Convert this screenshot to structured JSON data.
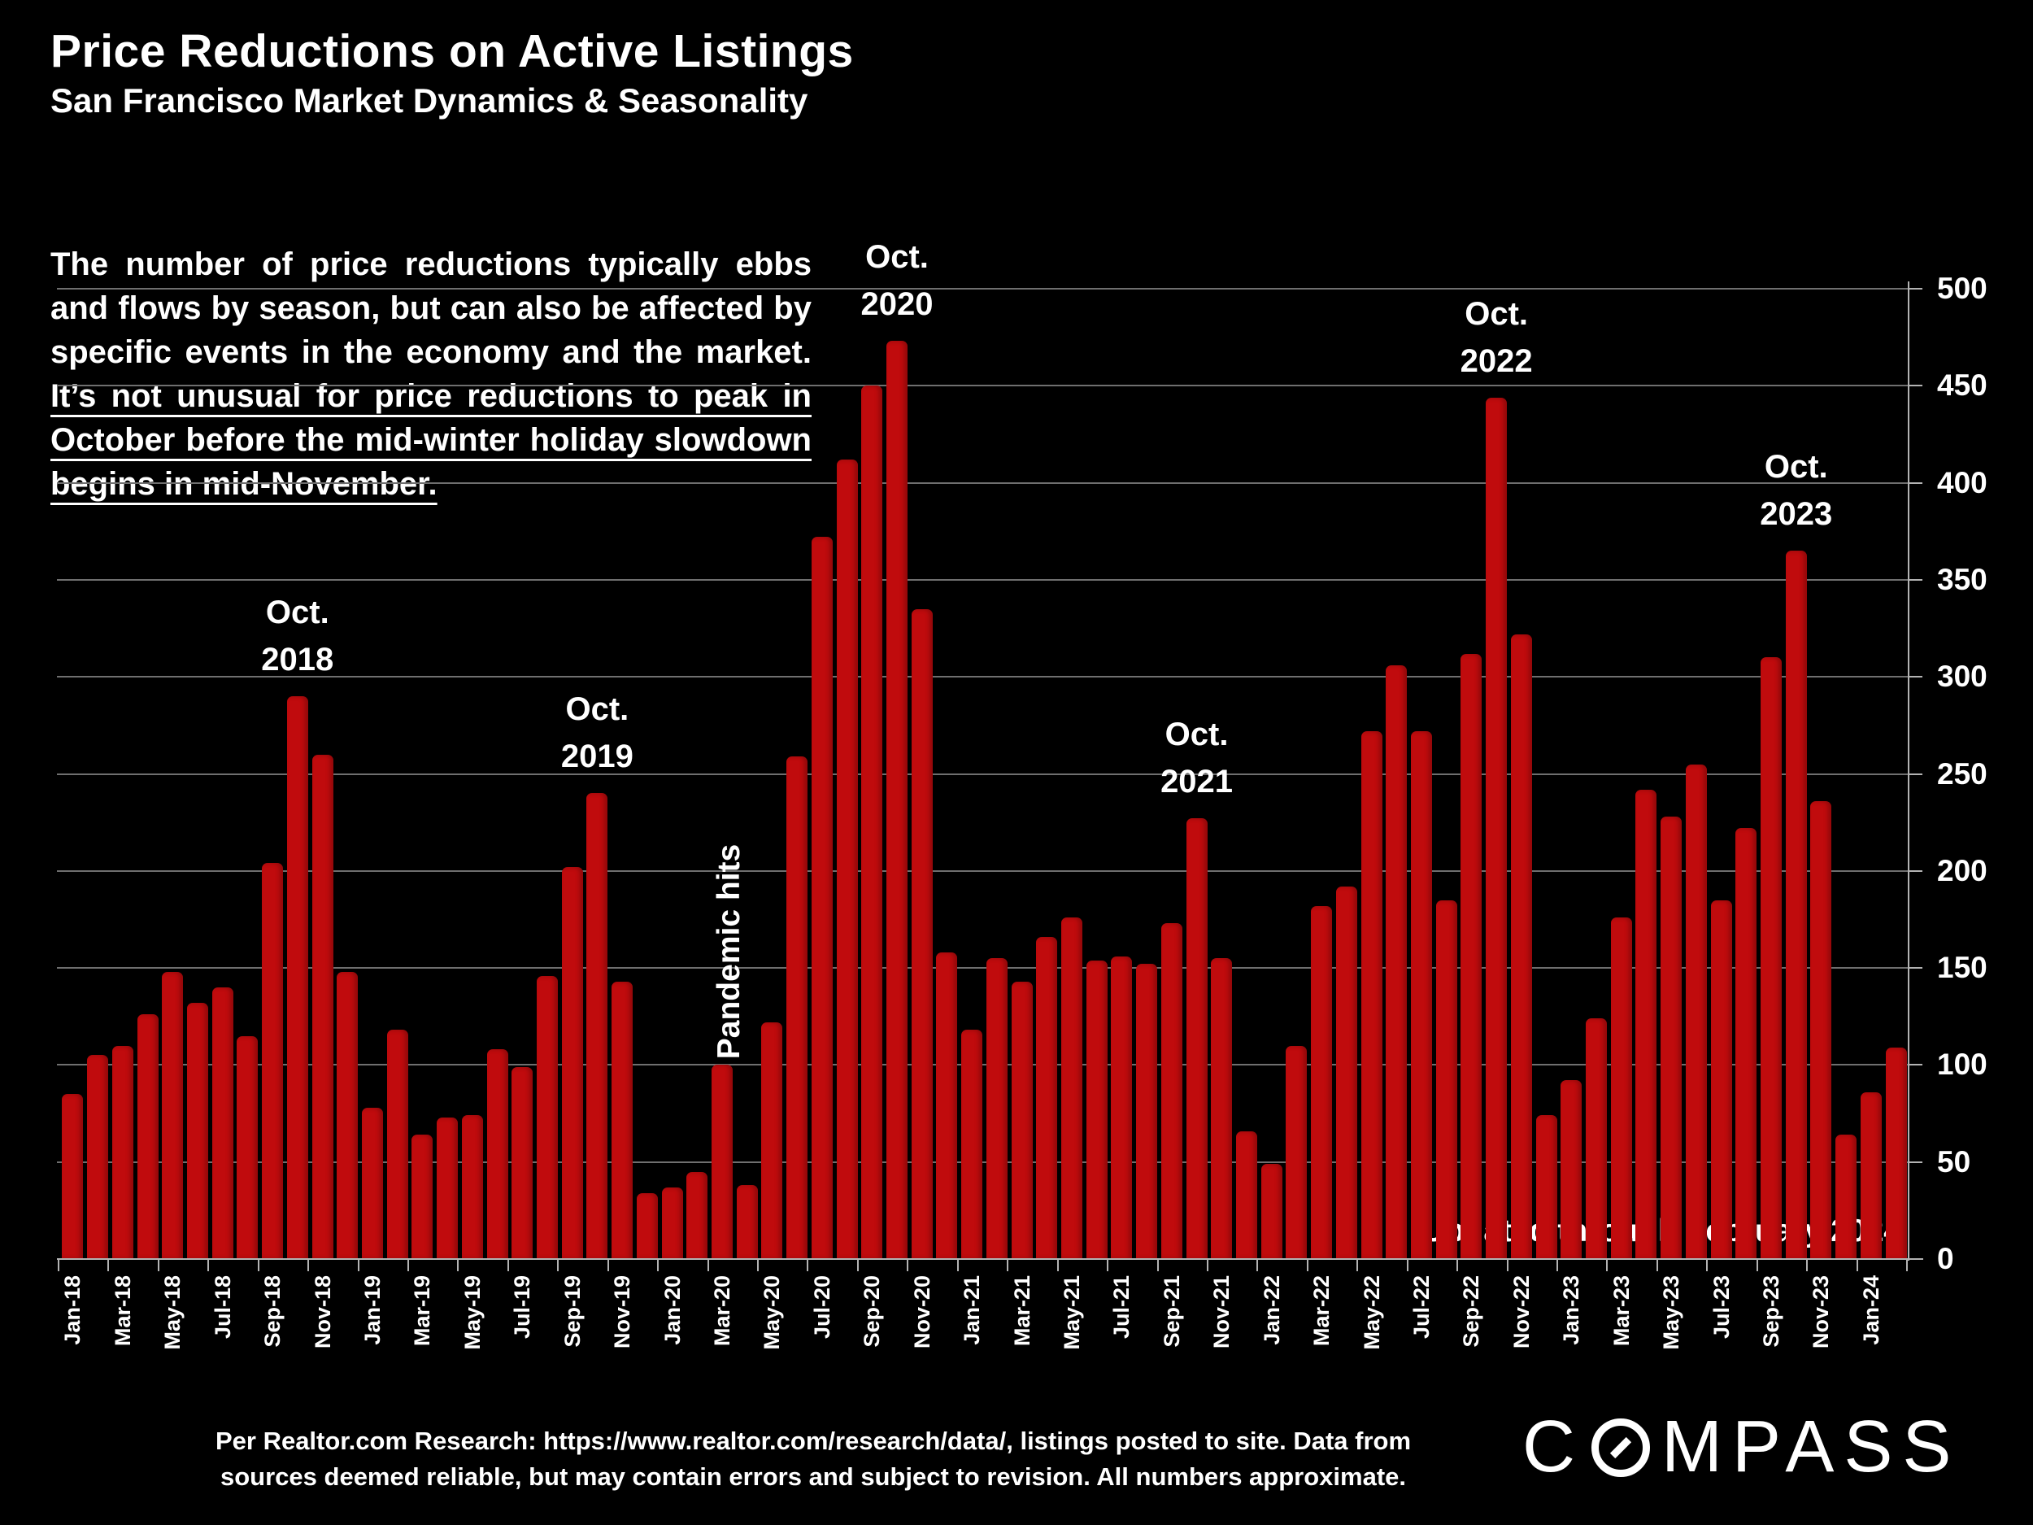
{
  "header": {
    "title": "Price Reductions on Active Listings",
    "subtitle": "San Francisco Market Dynamics & Seasonality"
  },
  "intro": {
    "text_normal": "The number of price reductions typically ebbs and flows by season, but can also be affected by specific events in the economy and the market. ",
    "text_underlined": "It’s not unusual for price reductions to peak in October before the mid-winter holiday slowdown begins in mid-November."
  },
  "chart_data": {
    "type": "bar",
    "title": "Price Reductions on Active Listings",
    "xlabel": "",
    "ylabel": "",
    "y_axis_side": "right",
    "ylim": [
      0,
      500
    ],
    "y_ticks": [
      0,
      50,
      100,
      150,
      200,
      250,
      300,
      350,
      400,
      450,
      500
    ],
    "grid": true,
    "bar_color": "#C00B0D",
    "background_color": "#000000",
    "categories": [
      "Jan-18",
      "Feb-18",
      "Mar-18",
      "Apr-18",
      "May-18",
      "Jun-18",
      "Jul-18",
      "Aug-18",
      "Sep-18",
      "Oct-18",
      "Nov-18",
      "Dec-18",
      "Jan-19",
      "Feb-19",
      "Mar-19",
      "Apr-19",
      "May-19",
      "Jun-19",
      "Jul-19",
      "Aug-19",
      "Sep-19",
      "Oct-19",
      "Nov-19",
      "Dec-19",
      "Jan-20",
      "Feb-20",
      "Mar-20",
      "Apr-20",
      "May-20",
      "Jun-20",
      "Jul-20",
      "Aug-20",
      "Sep-20",
      "Oct-20",
      "Nov-20",
      "Dec-20",
      "Jan-21",
      "Feb-21",
      "Mar-21",
      "Apr-21",
      "May-21",
      "Jun-21",
      "Jul-21",
      "Aug-21",
      "Sep-21",
      "Oct-21",
      "Nov-21",
      "Dec-21",
      "Jan-22",
      "Feb-22",
      "Mar-22",
      "Apr-22",
      "May-22",
      "Jun-22",
      "Jul-22",
      "Aug-22",
      "Sep-22",
      "Oct-22",
      "Nov-22",
      "Dec-22",
      "Jan-23",
      "Feb-23",
      "Mar-23",
      "Apr-23",
      "May-23",
      "Jun-23",
      "Jul-23",
      "Aug-23",
      "Sep-23",
      "Oct-23",
      "Nov-23",
      "Dec-23",
      "Jan-24",
      "Feb-24"
    ],
    "values": [
      85,
      105,
      110,
      126,
      148,
      132,
      140,
      115,
      204,
      290,
      260,
      148,
      78,
      118,
      64,
      73,
      74,
      108,
      99,
      146,
      202,
      240,
      143,
      34,
      37,
      45,
      100,
      38,
      122,
      259,
      372,
      412,
      450,
      473,
      335,
      158,
      118,
      155,
      143,
      166,
      176,
      154,
      156,
      152,
      173,
      227,
      155,
      66,
      49,
      110,
      182,
      192,
      272,
      306,
      272,
      185,
      312,
      444,
      322,
      74,
      92,
      124,
      176,
      242,
      228,
      255,
      185,
      222,
      310,
      365,
      236,
      64,
      86,
      109
    ],
    "x_tick_labels_shown_every": 2,
    "annotations": [
      {
        "line1": "Oct.",
        "line2": "2018",
        "month": "Oct-18"
      },
      {
        "line1": "Oct.",
        "line2": "2019",
        "month": "Oct-19"
      },
      {
        "line1": "Oct.",
        "line2": "2020",
        "month": "Oct-20"
      },
      {
        "line1": "Oct.",
        "line2": "2021",
        "month": "Oct-21"
      },
      {
        "line1": "Oct.",
        "line2": "2022",
        "month": "Oct-22"
      },
      {
        "line1": "Oct.",
        "line2": "2023",
        "month": "Oct-23"
      },
      {
        "text": "Pandemic hits",
        "month": "Apr-20",
        "rotated": true
      }
    ],
    "update_note": "Updated through February 2024"
  },
  "footer": {
    "source_line1": "Per Realtor.com Research:  https://www.realtor.com/research/data/, listings posted to site. Data from",
    "source_line2": "sources deemed reliable, but may contain errors and subject to revision. All numbers approximate.",
    "logo_text_start": "C",
    "logo_text_end": "MPASS"
  }
}
